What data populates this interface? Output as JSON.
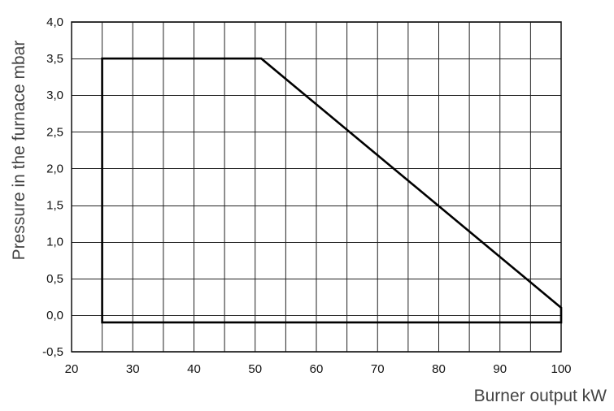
{
  "chart_data": {
    "type": "line",
    "xlabel": "Burner output kW",
    "ylabel": "Pressure in the furnace mbar",
    "xlim": [
      20,
      100
    ],
    "ylim": [
      -0.5,
      4.0
    ],
    "x_ticks": [
      20,
      30,
      40,
      50,
      60,
      70,
      80,
      90,
      100
    ],
    "x_tick_labels": [
      "20",
      "30",
      "40",
      "50",
      "60",
      "70",
      "80",
      "90",
      "100"
    ],
    "y_ticks": [
      -0.5,
      0.0,
      0.5,
      1.0,
      1.5,
      2.0,
      2.5,
      3.0,
      3.5,
      4.0
    ],
    "y_tick_labels": [
      "-0,5",
      "0,0",
      "0,5",
      "1,0",
      "1,5",
      "2,0",
      "2,5",
      "3,0",
      "3,5",
      "4,0"
    ],
    "x_minor_grid_step": 5,
    "y_minor_grid_step": 0.5,
    "grid": true,
    "series": [
      {
        "closed": true,
        "color": "#000000",
        "x": [
          25,
          25,
          51,
          100,
          100,
          25
        ],
        "y": [
          -0.1,
          3.5,
          3.5,
          0.1,
          -0.1,
          -0.1
        ]
      }
    ]
  }
}
